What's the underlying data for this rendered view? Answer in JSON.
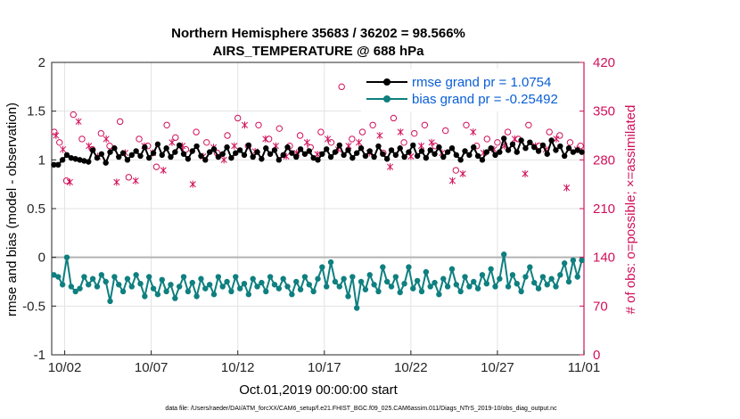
{
  "chart_data": {
    "type": "line",
    "title": "Northern Hemisphere 35683 / 36202 = 98.566%",
    "subtitle": "AIRS_TEMPERATURE @ 688 hPa",
    "xlabel": "Oct.01,2019 00:00:00 start",
    "ylabel_left": "rmse and bias (model - observation)",
    "ylabel_right": "# of obs: o=possible; ×=assimilated",
    "footnote": "data file: /Users/raeder/DAI/ATM_forcXX/CAM6_setup/f.e21.FHIST_BGC.f09_025.CAM6assim.011/Diags_NTrS_2019-10/obs_diag_output.nc",
    "x_ticks": [
      "10/02",
      "10/07",
      "10/12",
      "10/17",
      "10/22",
      "10/27",
      "11/01"
    ],
    "x_tick_values": [
      2,
      7,
      12,
      17,
      22,
      27,
      32
    ],
    "xlim": [
      1.25,
      32
    ],
    "y_ticks_left": [
      "-1",
      "-0.5",
      "0",
      "0.5",
      "1",
      "1.5",
      "2"
    ],
    "ylim_left": [
      -1,
      2
    ],
    "y_ticks_right": [
      "0",
      "70",
      "140",
      "210",
      "280",
      "350",
      "420"
    ],
    "ylim_right": [
      0,
      420
    ],
    "grid": true,
    "legend_position": "top-right",
    "colors": {
      "rmse": "#000000",
      "bias": "#0f7f7f",
      "obs": "#d1105a",
      "zero_line": "#b3b3b3",
      "legend_text": "#0a5fd6"
    },
    "series": [
      {
        "name": "rmse grand pr = 1.0754",
        "axis": "left",
        "x": [
          1.375,
          1.625,
          1.875,
          2.125,
          2.375,
          2.625,
          2.875,
          3.125,
          3.375,
          3.625,
          3.875,
          4.125,
          4.375,
          4.625,
          4.875,
          5.125,
          5.375,
          5.625,
          5.875,
          6.125,
          6.375,
          6.625,
          6.875,
          7.125,
          7.375,
          7.625,
          7.875,
          8.125,
          8.375,
          8.625,
          8.875,
          9.125,
          9.375,
          9.625,
          9.875,
          10.125,
          10.375,
          10.625,
          10.875,
          11.125,
          11.375,
          11.625,
          11.875,
          12.125,
          12.375,
          12.625,
          12.875,
          13.125,
          13.375,
          13.625,
          13.875,
          14.125,
          14.375,
          14.625,
          14.875,
          15.125,
          15.375,
          15.625,
          15.875,
          16.125,
          16.375,
          16.625,
          16.875,
          17.125,
          17.375,
          17.625,
          17.875,
          18.125,
          18.375,
          18.625,
          18.875,
          19.125,
          19.375,
          19.625,
          19.875,
          20.125,
          20.375,
          20.625,
          20.875,
          21.125,
          21.375,
          21.625,
          21.875,
          22.125,
          22.375,
          22.625,
          22.875,
          23.125,
          23.375,
          23.625,
          23.875,
          24.125,
          24.375,
          24.625,
          24.875,
          25.125,
          25.375,
          25.625,
          25.875,
          26.125,
          26.375,
          26.625,
          26.875,
          27.125,
          27.375,
          27.625,
          27.875,
          28.125,
          28.375,
          28.625,
          28.875,
          29.125,
          29.375,
          29.625,
          29.875,
          30.125,
          30.375,
          30.625,
          30.875,
          31.125,
          31.375,
          31.625,
          31.875
        ],
        "values": [
          0.95,
          0.95,
          1.0,
          1.05,
          1.02,
          1.01,
          1.0,
          0.99,
          0.98,
          1.1,
          1.02,
          1.06,
          0.97,
          1.08,
          1.12,
          1.03,
          1.07,
          1.0,
          1.05,
          1.09,
          1.04,
          1.13,
          1.02,
          1.07,
          1.16,
          1.05,
          1.12,
          1.03,
          1.08,
          1.15,
          1.06,
          1.01,
          1.09,
          1.14,
          1.04,
          1.0,
          1.08,
          1.11,
          1.03,
          1.06,
          1.13,
          1.02,
          1.07,
          1.1,
          1.05,
          1.15,
          1.03,
          1.08,
          1.01,
          1.12,
          1.06,
          1.1,
          1.0,
          1.05,
          1.13,
          1.07,
          1.03,
          1.11,
          1.06,
          1.09,
          1.02,
          1.0,
          1.06,
          1.11,
          1.03,
          1.08,
          1.15,
          1.05,
          1.1,
          1.02,
          1.07,
          1.12,
          1.04,
          1.09,
          1.03,
          1.14,
          1.06,
          1.01,
          1.1,
          1.05,
          1.12,
          1.03,
          1.08,
          1.15,
          1.04,
          1.09,
          1.02,
          1.1,
          1.06,
          1.13,
          1.03,
          1.08,
          1.12,
          1.05,
          1.0,
          1.09,
          1.05,
          1.13,
          1.04,
          1.0,
          1.08,
          1.12,
          1.05,
          1.08,
          1.22,
          1.1,
          1.16,
          1.08,
          1.2,
          1.12,
          1.18,
          1.13,
          1.09,
          1.15,
          1.06,
          1.2,
          1.1,
          1.14,
          1.04,
          1.12,
          1.08,
          1.1,
          1.08
        ]
      },
      {
        "name": "bias grand pr = -0.25492",
        "axis": "left",
        "x": [
          1.375,
          1.625,
          1.875,
          2.125,
          2.375,
          2.625,
          2.875,
          3.125,
          3.375,
          3.625,
          3.875,
          4.125,
          4.375,
          4.625,
          4.875,
          5.125,
          5.375,
          5.625,
          5.875,
          6.125,
          6.375,
          6.625,
          6.875,
          7.125,
          7.375,
          7.625,
          7.875,
          8.125,
          8.375,
          8.625,
          8.875,
          9.125,
          9.375,
          9.625,
          9.875,
          10.125,
          10.375,
          10.625,
          10.875,
          11.125,
          11.375,
          11.625,
          11.875,
          12.125,
          12.375,
          12.625,
          12.875,
          13.125,
          13.375,
          13.625,
          13.875,
          14.125,
          14.375,
          14.625,
          14.875,
          15.125,
          15.375,
          15.625,
          15.875,
          16.125,
          16.375,
          16.625,
          16.875,
          17.125,
          17.375,
          17.625,
          17.875,
          18.125,
          18.375,
          18.625,
          18.875,
          19.125,
          19.375,
          19.625,
          19.875,
          20.125,
          20.375,
          20.625,
          20.875,
          21.125,
          21.375,
          21.625,
          21.875,
          22.125,
          22.375,
          22.625,
          22.875,
          23.125,
          23.375,
          23.625,
          23.875,
          24.125,
          24.375,
          24.625,
          24.875,
          25.125,
          25.375,
          25.625,
          25.875,
          26.125,
          26.375,
          26.625,
          26.875,
          27.125,
          27.375,
          27.625,
          27.875,
          28.125,
          28.375,
          28.625,
          28.875,
          29.125,
          29.375,
          29.625,
          29.875,
          30.125,
          30.375,
          30.625,
          30.875,
          31.125,
          31.375,
          31.625,
          31.875
        ],
        "values": [
          -0.18,
          -0.2,
          -0.28,
          0.0,
          -0.3,
          -0.35,
          -0.32,
          -0.2,
          -0.28,
          -0.22,
          -0.3,
          -0.18,
          -0.25,
          -0.45,
          -0.2,
          -0.28,
          -0.35,
          -0.22,
          -0.3,
          -0.18,
          -0.27,
          -0.4,
          -0.2,
          -0.32,
          -0.38,
          -0.23,
          -0.35,
          -0.28,
          -0.42,
          -0.3,
          -0.2,
          -0.35,
          -0.26,
          -0.4,
          -0.22,
          -0.32,
          -0.28,
          -0.38,
          -0.2,
          -0.3,
          -0.25,
          -0.35,
          -0.2,
          -0.32,
          -0.27,
          -0.38,
          -0.22,
          -0.3,
          -0.26,
          -0.35,
          -0.2,
          -0.28,
          -0.32,
          -0.22,
          -0.3,
          -0.38,
          -0.25,
          -0.33,
          -0.2,
          -0.28,
          -0.35,
          -0.22,
          -0.1,
          -0.3,
          -0.05,
          -0.25,
          -0.3,
          -0.22,
          -0.4,
          -0.2,
          -0.52,
          -0.25,
          -0.33,
          -0.18,
          -0.28,
          -0.35,
          -0.1,
          -0.25,
          -0.3,
          -0.2,
          -0.36,
          -0.27,
          -0.1,
          -0.32,
          -0.24,
          -0.35,
          -0.15,
          -0.3,
          -0.26,
          -0.38,
          -0.22,
          -0.3,
          -0.12,
          -0.28,
          -0.35,
          -0.2,
          -0.3,
          -0.25,
          -0.32,
          -0.18,
          -0.27,
          -0.12,
          -0.3,
          -0.22,
          0.03,
          -0.3,
          -0.18,
          -0.27,
          -0.35,
          -0.2,
          -0.1,
          -0.26,
          -0.32,
          -0.2,
          -0.28,
          -0.22,
          -0.3,
          -0.18,
          -0.06,
          -0.25,
          -0.03,
          -0.2,
          -0.03
        ]
      },
      {
        "name": "obs possible",
        "axis": "right",
        "marker": "circle",
        "x": [
          1.4,
          1.7,
          2.1,
          2.5,
          3.0,
          3.6,
          4.1,
          4.6,
          5.2,
          5.7,
          6.3,
          6.8,
          7.3,
          7.9,
          8.4,
          9.0,
          9.6,
          10.2,
          10.8,
          11.4,
          12.0,
          12.6,
          13.2,
          13.8,
          14.4,
          15.0,
          15.6,
          16.2,
          16.8,
          17.4,
          18.0,
          18.6,
          19.2,
          19.8,
          20.4,
          21.0,
          21.6,
          22.2,
          22.8,
          23.4,
          24.0,
          24.6,
          25.2,
          25.8,
          26.4,
          27.0,
          27.6,
          28.2,
          28.8,
          29.4,
          30.0,
          30.6,
          31.2,
          31.8
        ],
        "values": [
          320,
          305,
          250,
          345,
          310,
          295,
          318,
          300,
          335,
          255,
          310,
          300,
          270,
          330,
          312,
          295,
          320,
          305,
          290,
          315,
          340,
          300,
          330,
          310,
          325,
          300,
          315,
          298,
          320,
          305,
          385,
          310,
          320,
          330,
          290,
          340,
          305,
          318,
          330,
          300,
          322,
          265,
          330,
          300,
          310,
          305,
          320,
          310,
          330,
          300,
          320,
          315,
          305,
          300
        ]
      },
      {
        "name": "obs assimilated",
        "axis": "right",
        "marker": "asterisk",
        "x": [
          1.5,
          1.9,
          2.3,
          2.8,
          3.4,
          3.9,
          4.4,
          5.0,
          5.5,
          6.1,
          6.6,
          7.1,
          7.7,
          8.2,
          8.8,
          9.4,
          10.0,
          10.6,
          11.2,
          11.8,
          12.4,
          13.0,
          13.6,
          14.2,
          14.8,
          15.4,
          16.0,
          16.6,
          17.2,
          17.8,
          18.4,
          19.0,
          19.6,
          20.2,
          20.8,
          21.4,
          22.0,
          22.6,
          23.2,
          23.8,
          24.4,
          25.0,
          25.6,
          26.2,
          26.8,
          27.4,
          28.0,
          28.6,
          29.2,
          29.8,
          30.4,
          31.0,
          31.6
        ],
        "values": [
          315,
          295,
          248,
          335,
          300,
          285,
          310,
          248,
          290,
          250,
          300,
          290,
          265,
          305,
          300,
          245,
          285,
          298,
          280,
          300,
          330,
          292,
          310,
          300,
          285,
          290,
          305,
          288,
          310,
          295,
          300,
          305,
          290,
          315,
          270,
          320,
          285,
          300,
          305,
          290,
          250,
          260,
          320,
          290,
          295,
          300,
          310,
          260,
          300,
          295,
          310,
          240,
          295
        ]
      }
    ]
  }
}
